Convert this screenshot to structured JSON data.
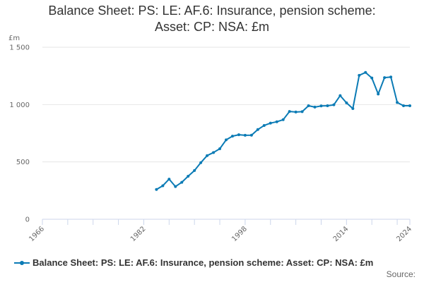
{
  "chart_data": {
    "type": "line",
    "title": [
      "Balance Sheet: PS: LE: AF.6: Insurance, pension scheme:",
      "Asset: CP: NSA: £m"
    ],
    "ylabel": "£m",
    "ylim": [
      0,
      1500
    ],
    "xlim": [
      1966,
      2024
    ],
    "yticks": [
      0,
      500,
      1000,
      1500
    ],
    "ytick_labels": [
      "0",
      "500",
      "1 000",
      "1 500"
    ],
    "xticks": [
      1966,
      1982,
      1998,
      2014,
      2024
    ],
    "xtick_labels": [
      "1966",
      "1982",
      "1998",
      "2014",
      "2024"
    ],
    "grid": "horizontal",
    "legend_position": "bottom",
    "series": [
      {
        "name": "Balance Sheet: PS: LE: AF.6: Insurance, pension scheme: Asset: CP: NSA: £m",
        "color": "#0b7bb5",
        "x": [
          1984,
          1985,
          1986,
          1987,
          1988,
          1989,
          1990,
          1991,
          1992,
          1993,
          1994,
          1995,
          1996,
          1997,
          1998,
          1999,
          2000,
          2001,
          2002,
          2003,
          2004,
          2005,
          2006,
          2007,
          2008,
          2009,
          2010,
          2011,
          2012,
          2013,
          2014,
          2015,
          2016,
          2017,
          2018,
          2019,
          2020,
          2021,
          2022,
          2023,
          2024
        ],
        "y": [
          260,
          292,
          350,
          285,
          322,
          375,
          425,
          493,
          555,
          582,
          615,
          692,
          725,
          737,
          732,
          733,
          782,
          818,
          838,
          850,
          868,
          940,
          935,
          938,
          990,
          978,
          988,
          990,
          998,
          1078,
          1015,
          965,
          1255,
          1280,
          1232,
          1092,
          1235,
          1240,
          1018,
          990,
          990
        ]
      }
    ]
  },
  "source_label": "Source:"
}
